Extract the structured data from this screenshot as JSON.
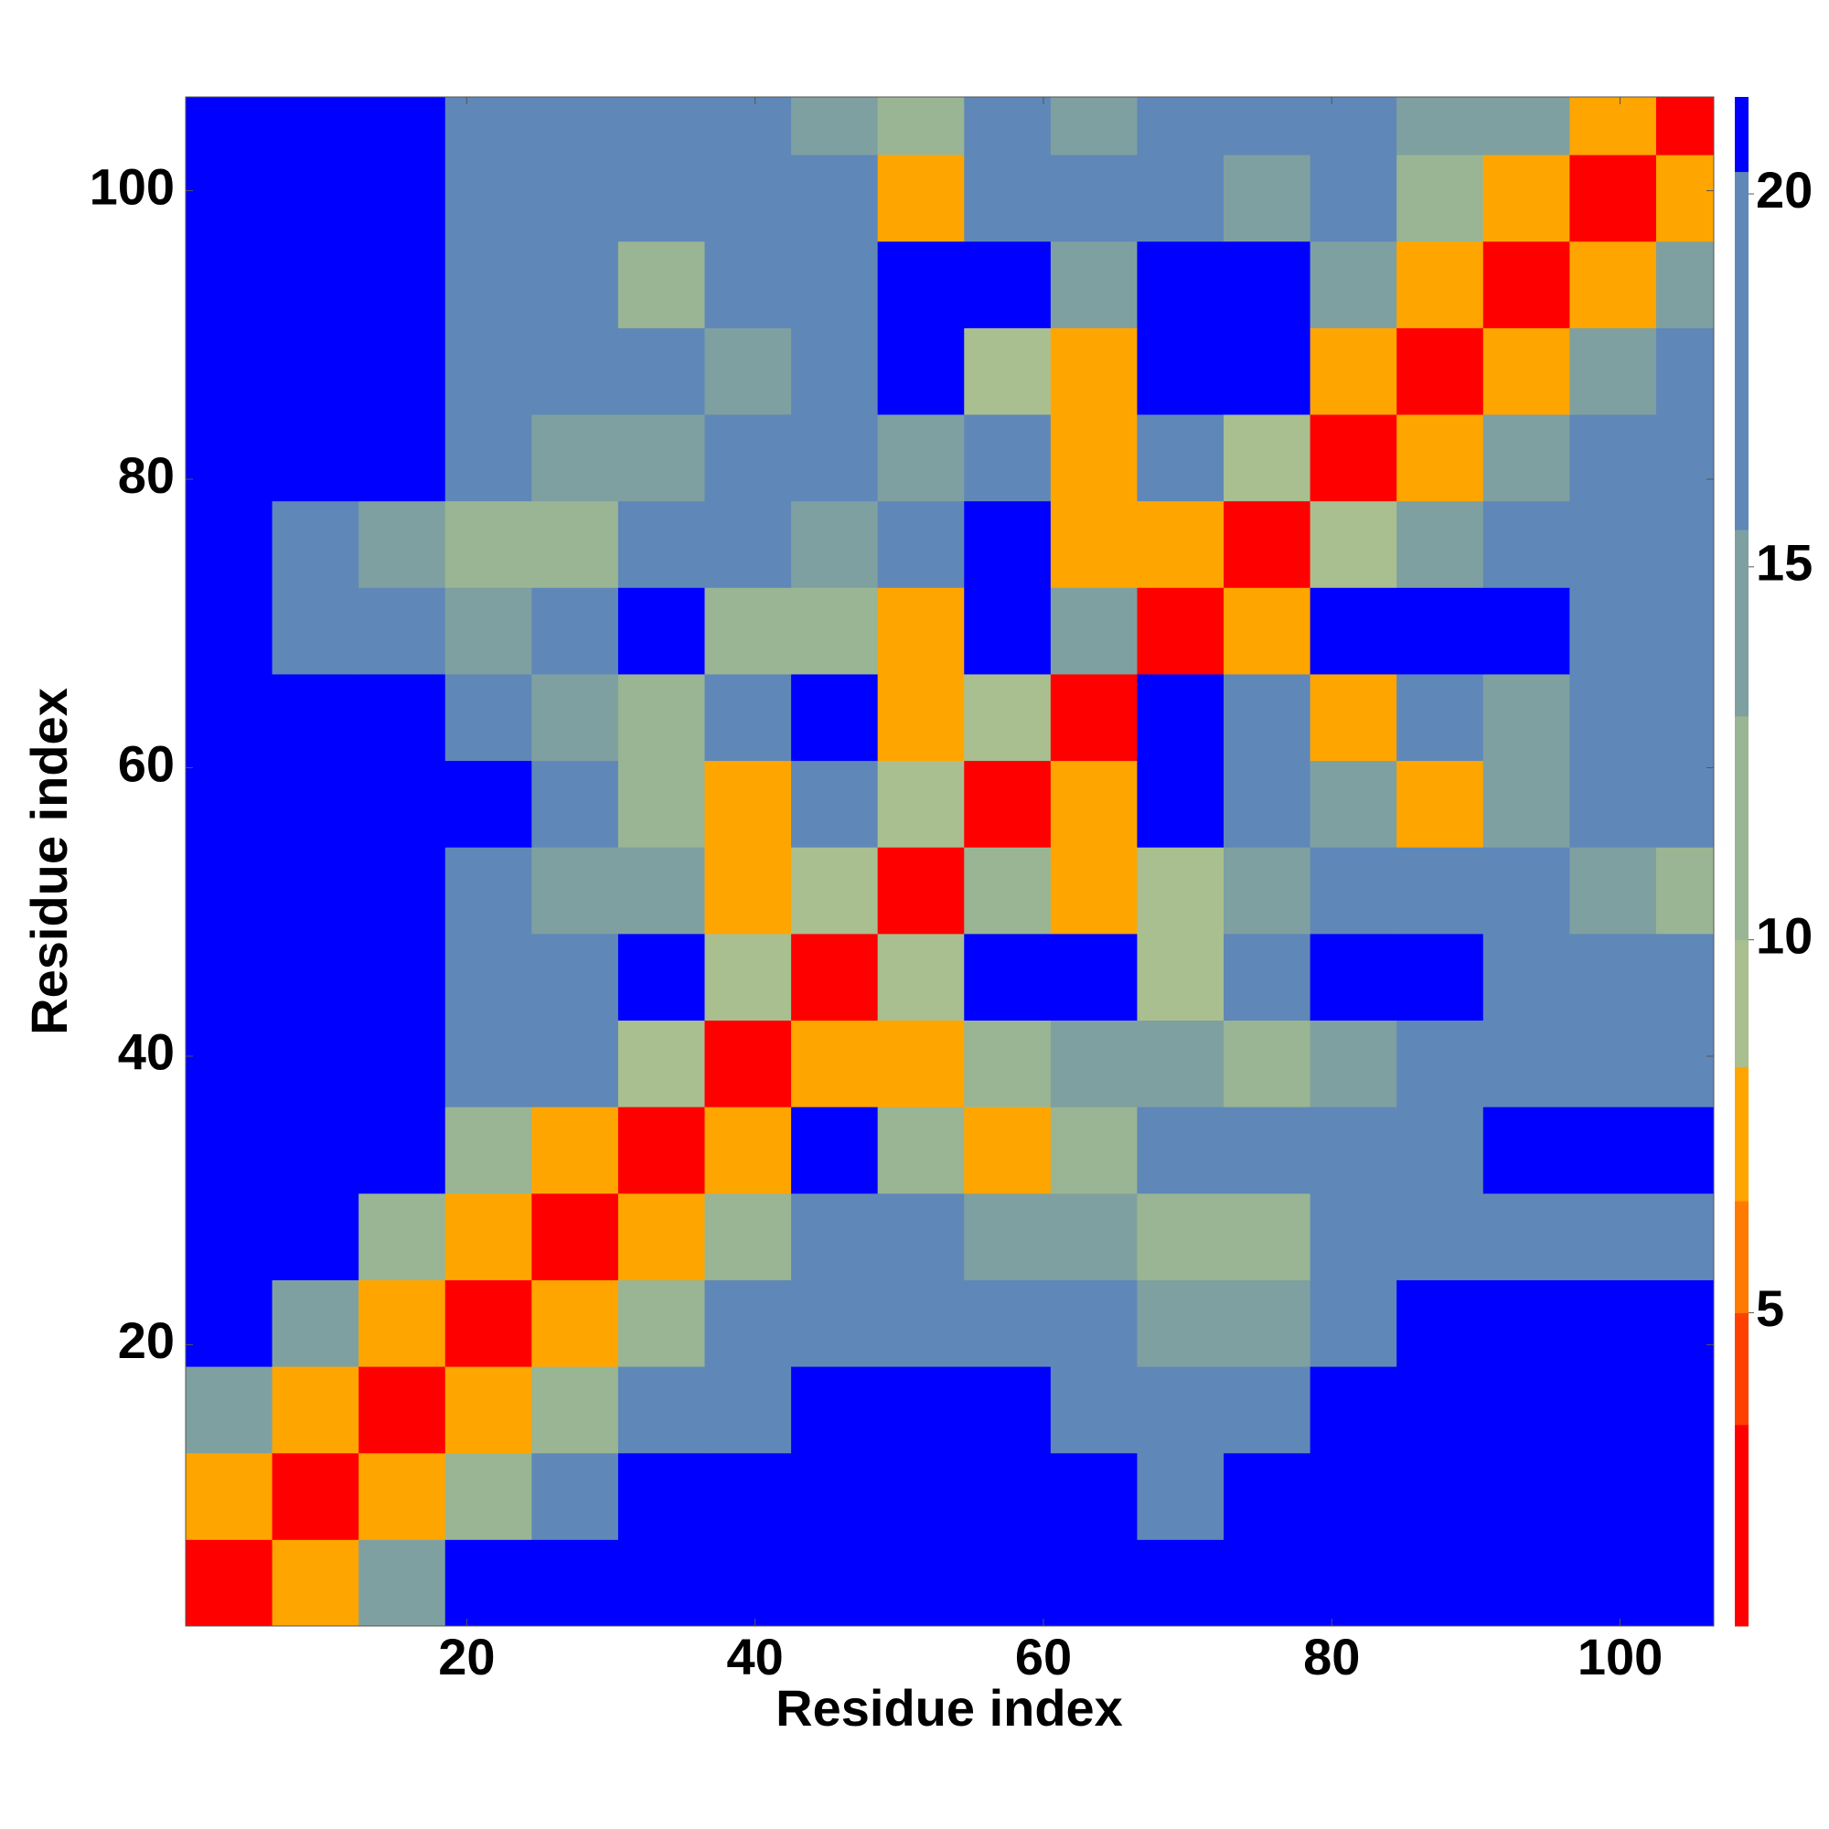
{
  "chart_data": {
    "type": "heatmap",
    "xlabel": "Residue index",
    "ylabel": "Residue index",
    "xlim": [
      0.5,
      106.5
    ],
    "ylim": [
      0.5,
      106.5
    ],
    "xticks": [
      20,
      40,
      60,
      80,
      100
    ],
    "yticks": [
      20,
      40,
      60,
      80,
      100
    ],
    "xbins": [
      0.5,
      6.5,
      12.5,
      18.5,
      24.5,
      30.5,
      36.5,
      42.5,
      48.5,
      54.5,
      60.5,
      66.5,
      72.5,
      78.5,
      84.5,
      90.5,
      96.5,
      102.5,
      106.5
    ],
    "ybins": [
      0.5,
      6.5,
      12.5,
      18.5,
      24.5,
      30.5,
      36.5,
      42.5,
      48.5,
      54.5,
      60.5,
      66.5,
      72.5,
      78.5,
      84.5,
      90.5,
      96.5,
      102.5,
      106.5
    ],
    "z": [
      [
        3,
        8,
        14,
        21,
        21,
        21,
        21,
        21,
        21,
        21,
        21,
        21,
        21,
        21,
        21,
        21,
        21,
        21
      ],
      [
        8,
        3,
        8,
        13,
        19,
        21,
        21,
        21,
        21,
        21,
        21,
        18,
        21,
        21,
        21,
        21,
        21,
        21
      ],
      [
        14,
        8,
        3,
        8,
        13,
        19,
        19,
        21,
        21,
        21,
        19,
        17,
        18,
        21,
        21,
        21,
        21,
        21
      ],
      [
        21,
        14,
        8,
        3,
        8,
        13,
        17,
        19,
        18,
        19,
        17,
        15,
        15,
        18,
        21,
        21,
        21,
        21
      ],
      [
        21,
        21,
        13,
        8,
        3,
        8,
        12,
        20,
        19,
        15,
        14,
        13,
        13,
        17,
        19,
        19,
        18,
        19
      ],
      [
        21,
        21,
        21,
        13,
        8,
        3,
        8,
        21,
        13,
        8,
        13,
        20,
        20,
        19,
        18,
        21,
        21,
        21
      ],
      [
        21,
        21,
        21,
        18,
        16,
        10,
        3,
        8,
        7,
        13,
        15,
        14,
        13,
        15,
        16,
        18,
        19,
        19
      ],
      [
        21,
        21,
        21,
        18,
        17,
        21,
        9,
        3,
        10,
        21,
        21,
        9,
        17,
        21,
        21,
        19,
        20,
        19
      ],
      [
        21,
        21,
        21,
        19,
        14,
        14,
        7,
        9,
        3,
        13,
        7,
        9,
        15,
        17,
        17,
        17,
        14,
        11
      ],
      [
        21,
        21,
        21,
        21,
        17,
        11,
        8,
        20,
        9,
        3,
        8,
        21,
        18,
        15,
        8,
        14,
        16,
        18
      ],
      [
        21,
        21,
        21,
        18,
        14,
        12,
        17,
        21,
        7,
        9,
        3,
        21,
        20,
        8,
        16,
        15,
        17,
        18
      ],
      [
        21,
        17,
        16,
        15,
        17,
        21,
        13,
        13,
        7,
        21,
        15,
        3,
        8,
        21,
        21,
        21,
        17,
        17
      ],
      [
        21,
        18,
        14,
        13,
        13,
        17,
        17,
        14,
        16,
        21,
        8,
        7,
        3,
        9,
        15,
        17,
        19,
        17
      ],
      [
        21,
        21,
        21,
        17,
        15,
        15,
        16,
        19,
        15,
        16,
        8,
        19,
        9,
        3,
        8,
        14,
        16,
        18
      ],
      [
        21,
        21,
        21,
        19,
        17,
        17,
        15,
        18,
        21,
        10,
        7,
        21,
        21,
        8,
        3,
        8,
        14,
        16
      ],
      [
        21,
        21,
        21,
        19,
        18,
        13,
        17,
        16,
        21,
        21,
        15,
        21,
        21,
        14,
        8,
        3,
        8,
        15
      ],
      [
        21,
        21,
        21,
        19,
        19,
        17,
        20,
        17,
        8,
        19,
        16,
        17,
        14,
        17,
        13,
        8,
        3,
        8
      ],
      [
        21,
        21,
        21,
        19,
        18,
        18,
        19,
        15,
        12,
        18,
        14,
        19,
        17,
        16,
        14,
        14,
        8,
        3
      ]
    ],
    "clim": [
      0.8,
      21.3
    ],
    "cticks": [
      5,
      10,
      15,
      20
    ],
    "colorscale": [
      [
        3.5,
        "#ff0000"
      ],
      [
        5,
        "#ff4000"
      ],
      [
        6.5,
        "#ff7a00"
      ],
      [
        8.3,
        "#ffa500"
      ],
      [
        10,
        "#a9bf8f"
      ],
      [
        13,
        "#9ab593"
      ],
      [
        15.5,
        "#7fa0a0"
      ],
      [
        20.3,
        "#5f88b8"
      ],
      [
        21.3,
        "#0000ff"
      ]
    ]
  }
}
